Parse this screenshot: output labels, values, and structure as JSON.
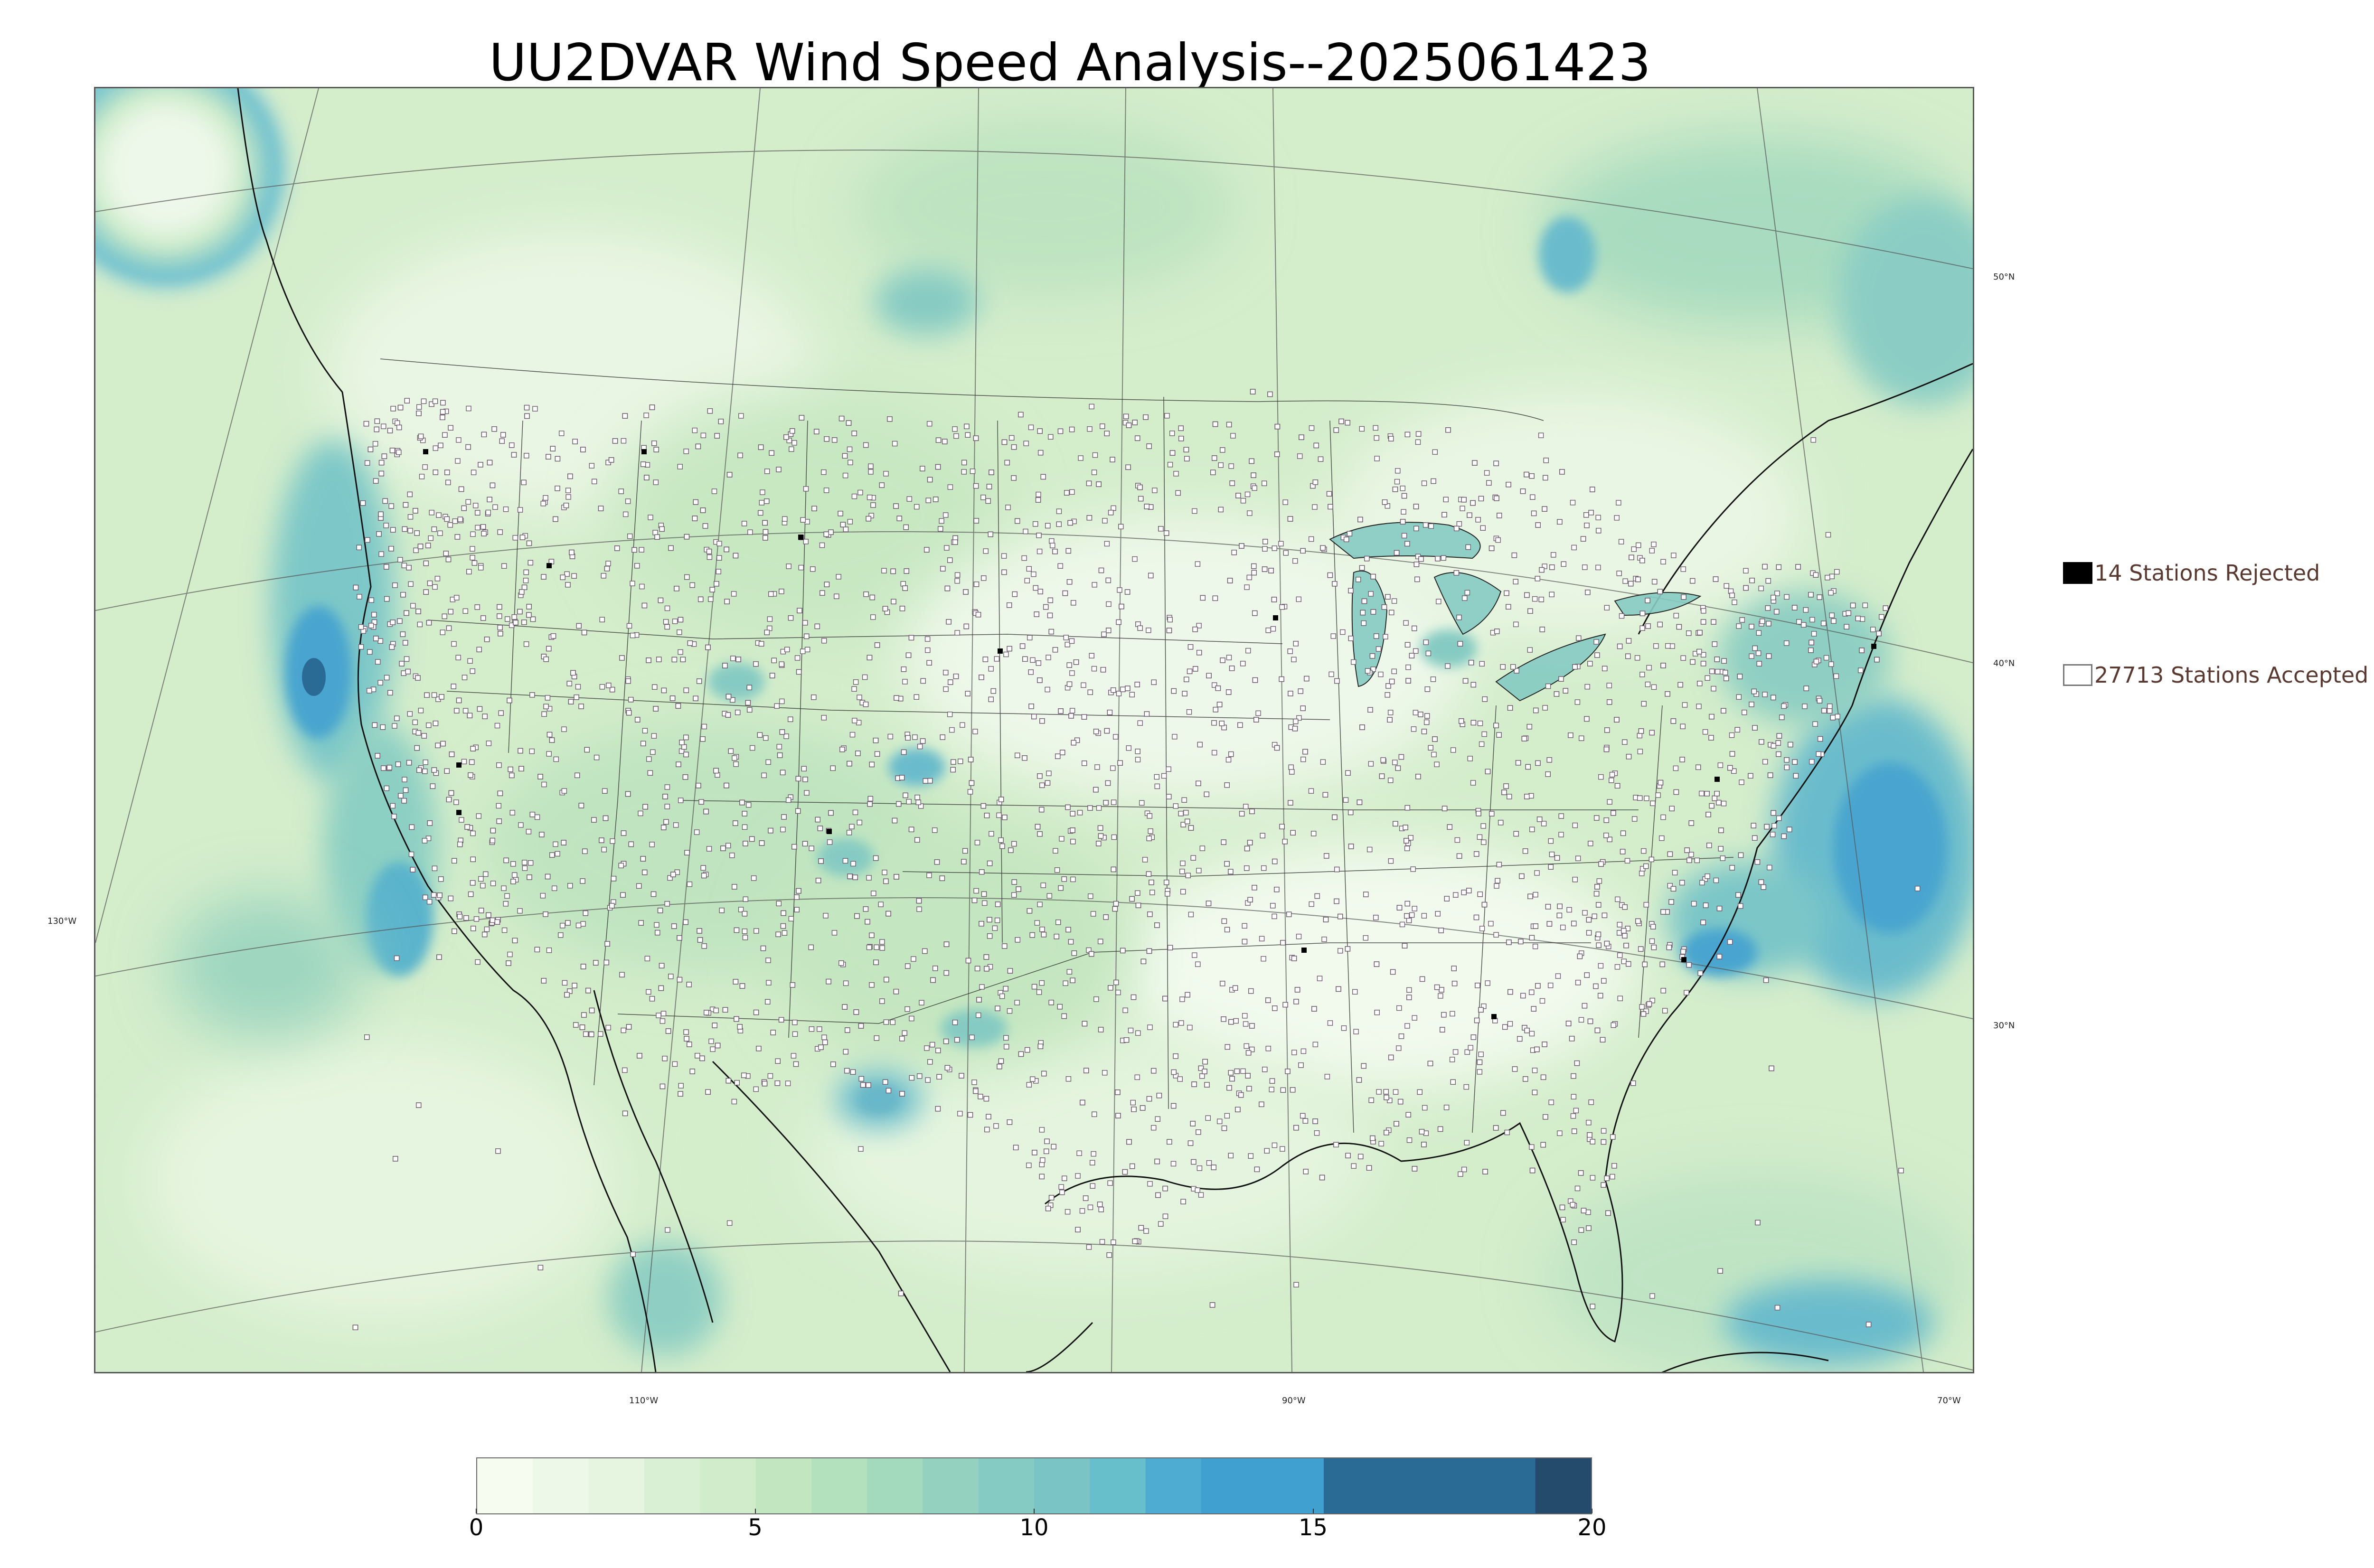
{
  "title": "UU2DVAR Wind Speed Analysis--2025061423",
  "legend": {
    "rejected_label": "14 Stations Rejected",
    "accepted_label": "27713 Stations Accepted",
    "rejected_color": "#000000",
    "accepted_color": "#ffffff"
  },
  "lat_labels": [
    "50°N",
    "40°N",
    "30°N"
  ],
  "lon_labels": [
    "130°W",
    "110°W",
    "90°W",
    "70°W"
  ],
  "colorbar": {
    "ticks": [
      "0",
      "5",
      "10",
      "15",
      "20"
    ],
    "min": 0,
    "max": 20,
    "bins": [
      {
        "from": 0,
        "to": 1,
        "color": "#f7fcf0"
      },
      {
        "from": 1,
        "to": 2,
        "color": "#eef8e8"
      },
      {
        "from": 2,
        "to": 3,
        "color": "#e5f5df"
      },
      {
        "from": 3,
        "to": 4,
        "color": "#daf0d4"
      },
      {
        "from": 4,
        "to": 5,
        "color": "#d0ecca"
      },
      {
        "from": 5,
        "to": 6,
        "color": "#c2e6c0"
      },
      {
        "from": 6,
        "to": 7,
        "color": "#b3e0bd"
      },
      {
        "from": 7,
        "to": 8,
        "color": "#a3d9bd"
      },
      {
        "from": 8,
        "to": 9,
        "color": "#94d2bf"
      },
      {
        "from": 9,
        "to": 10,
        "color": "#86cbc3"
      },
      {
        "from": 10,
        "to": 11,
        "color": "#7ac4c6"
      },
      {
        "from": 11,
        "to": 12,
        "color": "#66bfca"
      },
      {
        "from": 12,
        "to": 13,
        "color": "#4eabd1"
      },
      {
        "from": 13,
        "to": 15.2,
        "color": "#40a1d0"
      },
      {
        "from": 15.2,
        "to": 19,
        "color": "#2a6b96"
      },
      {
        "from": 19,
        "to": 20,
        "color": "#244b6b"
      }
    ]
  },
  "colors": {
    "ocean_calm": "#d8f0d2",
    "land_base": "#d2ecc8",
    "high_wind": "#4aa5cf",
    "very_high_wind": "#2a6b96"
  }
}
